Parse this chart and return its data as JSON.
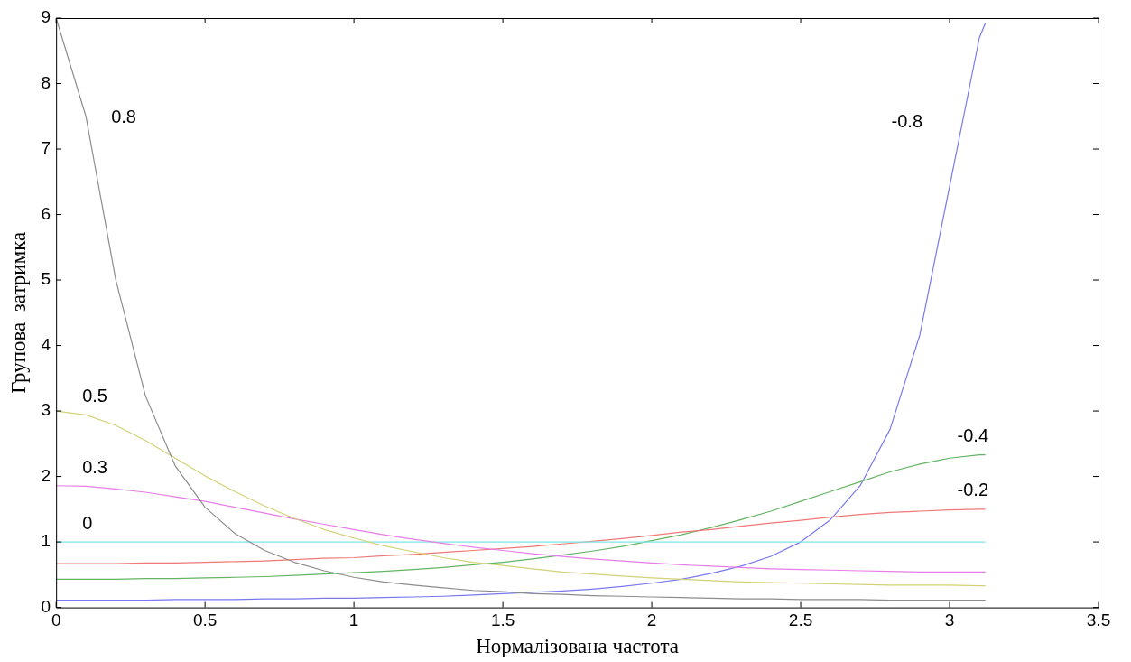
{
  "chart_data": {
    "type": "line",
    "xlabel": "Нормалізована частота",
    "ylabel": "Групова  затримка",
    "x": [
      0,
      0.1,
      0.2,
      0.3,
      0.4,
      0.5,
      0.6,
      0.7,
      0.8,
      0.9,
      1.0,
      1.1,
      1.2,
      1.3,
      1.4,
      1.5,
      1.6,
      1.7,
      1.8,
      1.9,
      2.0,
      2.1,
      2.2,
      2.3,
      2.4,
      2.5,
      2.6,
      2.7,
      2.8,
      2.9,
      3.0,
      3.1,
      3.12
    ],
    "series": [
      {
        "name": "0.8",
        "color": "#8c8c8c",
        "values": [
          9,
          7.5,
          5.01,
          3.23,
          2.16,
          1.53,
          1.13,
          0.87,
          0.69,
          0.56,
          0.46,
          0.39,
          0.34,
          0.3,
          0.26,
          0.24,
          0.21,
          0.2,
          0.18,
          0.17,
          0.16,
          0.15,
          0.14,
          0.13,
          0.13,
          0.12,
          0.12,
          0.12,
          0.11,
          0.11,
          0.11,
          0.11,
          0.11
        ]
      },
      {
        "name": "0.5",
        "color": "#d2d278",
        "values": [
          3,
          2.94,
          2.78,
          2.55,
          2.28,
          2.01,
          1.77,
          1.55,
          1.36,
          1.19,
          1.06,
          0.94,
          0.85,
          0.76,
          0.69,
          0.64,
          0.59,
          0.54,
          0.51,
          0.48,
          0.45,
          0.43,
          0.41,
          0.39,
          0.38,
          0.37,
          0.36,
          0.35,
          0.34,
          0.34,
          0.34,
          0.33,
          0.33
        ]
      },
      {
        "name": "0.3",
        "color": "#e67ee6",
        "values": [
          1.86,
          1.85,
          1.81,
          1.76,
          1.69,
          1.62,
          1.53,
          1.44,
          1.35,
          1.27,
          1.19,
          1.11,
          1.04,
          0.98,
          0.92,
          0.87,
          0.82,
          0.78,
          0.74,
          0.71,
          0.68,
          0.65,
          0.63,
          0.61,
          0.59,
          0.58,
          0.57,
          0.56,
          0.55,
          0.54,
          0.54,
          0.54,
          0.54
        ]
      },
      {
        "name": "0",
        "color": "#7ee6e6",
        "values": [
          1,
          1,
          1,
          1,
          1,
          1,
          1,
          1,
          1,
          1,
          1,
          1,
          1,
          1,
          1,
          1,
          1,
          1,
          1,
          1,
          1,
          1,
          1,
          1,
          1,
          1,
          1,
          1,
          1,
          1,
          1,
          1,
          1
        ]
      },
      {
        "name": "-0.2",
        "color": "#f07878",
        "values": [
          0.67,
          0.67,
          0.67,
          0.68,
          0.68,
          0.69,
          0.7,
          0.71,
          0.73,
          0.75,
          0.76,
          0.79,
          0.81,
          0.84,
          0.87,
          0.9,
          0.93,
          0.97,
          1.01,
          1.05,
          1.1,
          1.15,
          1.19,
          1.24,
          1.29,
          1.33,
          1.38,
          1.42,
          1.45,
          1.47,
          1.49,
          1.5,
          1.5
        ]
      },
      {
        "name": "-0.4",
        "color": "#64b464",
        "values": [
          0.43,
          0.43,
          0.43,
          0.44,
          0.44,
          0.45,
          0.46,
          0.47,
          0.49,
          0.51,
          0.53,
          0.55,
          0.58,
          0.61,
          0.65,
          0.69,
          0.74,
          0.8,
          0.86,
          0.93,
          1.02,
          1.11,
          1.22,
          1.34,
          1.47,
          1.62,
          1.77,
          1.92,
          2.07,
          2.19,
          2.28,
          2.33,
          2.33
        ]
      },
      {
        "name": "-0.8",
        "color": "#7878f0",
        "values": [
          0.11,
          0.11,
          0.11,
          0.11,
          0.12,
          0.12,
          0.12,
          0.13,
          0.13,
          0.14,
          0.14,
          0.15,
          0.16,
          0.17,
          0.19,
          0.21,
          0.23,
          0.25,
          0.28,
          0.32,
          0.37,
          0.43,
          0.52,
          0.63,
          0.78,
          1.0,
          1.34,
          1.86,
          2.72,
          4.16,
          6.43,
          8.7,
          8.92
        ]
      }
    ],
    "xlim": [
      0,
      3.5
    ],
    "xticks": [
      0,
      0.5,
      1,
      1.5,
      2,
      2.5,
      3,
      3.5
    ],
    "ylim": [
      0,
      9
    ],
    "yticks": [
      0,
      1,
      2,
      3,
      4,
      5,
      6,
      7,
      8,
      9
    ],
    "grid": false,
    "legend": false,
    "marker": "none",
    "line_style": "solid"
  }
}
